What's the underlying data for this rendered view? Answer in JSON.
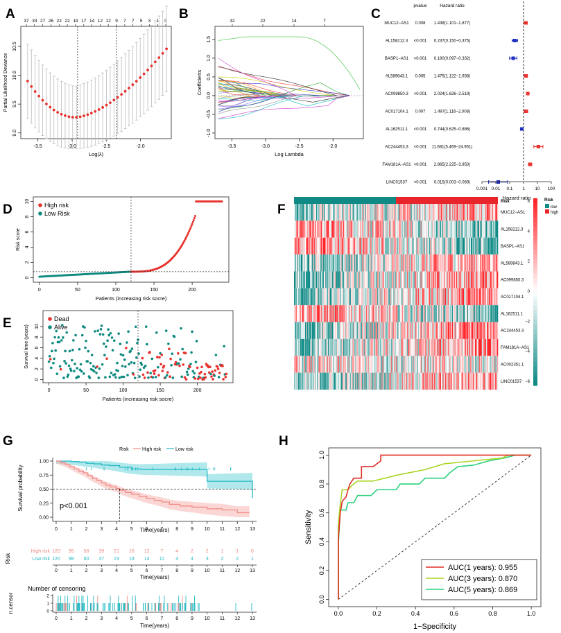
{
  "colors": {
    "high": "#e8322e",
    "low": "#0e8a80",
    "blue": "#1f2fbf",
    "km_high": "#f08a84",
    "km_low": "#26b9c4",
    "km_high_fill": "#f6b7b3",
    "km_low_fill": "#6fd6dc",
    "roc1": "#e22b25",
    "roc3": "#a9d422",
    "roc5": "#2bd17e",
    "heat_low": "#0f8a85",
    "heat_high": "#e8252a"
  },
  "panels": {
    "A": "A",
    "B": "B",
    "C": "C",
    "D": "D",
    "E": "E",
    "F": "F",
    "G": "G",
    "H": "H"
  },
  "chart_data": [
    {
      "panel": "A",
      "type": "scatter",
      "ylabel": "Partial Likelihood Deviance",
      "xlabel": "Log(λ)",
      "top_ticks": [
        "37",
        "33",
        "27",
        "26",
        "22",
        "22",
        "19",
        "17",
        "14",
        "12",
        "12",
        "9",
        "7",
        "7",
        "5",
        "3",
        "1",
        "0"
      ],
      "xlim": [
        -3.75,
        -1.55
      ],
      "ylim": [
        8.9,
        10.85
      ],
      "xticks": [
        -3.5,
        -3.0,
        -2.5,
        -2.0
      ],
      "xtick_labels": [
        "-3.5",
        "-3.0",
        "-2.5",
        "-2.0"
      ],
      "yticks": [
        9.0,
        9.5,
        10.0,
        10.5
      ],
      "ytick_labels": [
        "9.0",
        "9.5",
        "10.0",
        "10.5"
      ],
      "vlines": [
        -2.92,
        -2.35
      ],
      "n_points": 38,
      "x_range": [
        -3.65,
        -1.62
      ],
      "min_x": -2.95,
      "min_y": 9.27,
      "left_y": 9.9,
      "right_y": 10.46,
      "err_spread": 0.72
    },
    {
      "panel": "B",
      "type": "line",
      "ylabel": "Coefficients",
      "xlabel": "Log Lambda",
      "top_ticks": [
        "32",
        "22",
        "14",
        "7"
      ],
      "xlim": [
        -3.75,
        -1.55
      ],
      "ylim": [
        -1.15,
        1.85
      ],
      "xticks": [
        -3.5,
        -3.0,
        -2.5,
        -2.0
      ],
      "xtick_labels": [
        "-3.5",
        "-3.0",
        "-2.5",
        "-2.0"
      ],
      "yticks": [
        -1.0,
        -0.5,
        0.0,
        0.5,
        1.0,
        1.5
      ],
      "ytick_labels": [
        "-1.0",
        "-0.5",
        "0.0",
        "0.5",
        "1.0",
        "1.5"
      ],
      "n_paths": 38
    },
    {
      "panel": "C",
      "type": "forest",
      "col_pvalue": "pvalue",
      "col_hr": "Hazard ratio",
      "xlabel": "Hazard ratio",
      "xtick_labels": [
        "0.001",
        "0.01",
        "0.1",
        "1",
        "10",
        "100"
      ],
      "rows": [
        {
          "gene": "MUC12−AS1",
          "p": "0.008",
          "hr_text": "1.438(1.101−1.877)",
          "hr": 1.438,
          "lo": 1.101,
          "hi": 1.877
        },
        {
          "gene": "AL158212.3",
          "p": "<0.001",
          "hr_text": "0.237(0.150−0.375)",
          "hr": 0.237,
          "lo": 0.15,
          "hi": 0.375
        },
        {
          "gene": "BASP1−AS1",
          "p": "<0.001",
          "hr_text": "0.180(0.097−0.332)",
          "hr": 0.18,
          "lo": 0.097,
          "hi": 0.332
        },
        {
          "gene": "AL589843.1",
          "p": "0.005",
          "hr_text": "1.475(1.122−1.938)",
          "hr": 1.475,
          "lo": 1.122,
          "hi": 1.938
        },
        {
          "gene": "AC099850.3",
          "p": "<0.001",
          "hr_text": "2.024(1.626−2.519)",
          "hr": 2.024,
          "lo": 1.626,
          "hi": 2.519
        },
        {
          "gene": "AC017104.1",
          "p": "0.007",
          "hr_text": "1.497(1.116−2.008)",
          "hr": 1.497,
          "lo": 1.116,
          "hi": 2.008
        },
        {
          "gene": "AL162511.1",
          "p": "<0.001",
          "hr_text": "0.744(0.625−0.886)",
          "hr": 0.744,
          "lo": 0.625,
          "hi": 0.886
        },
        {
          "gene": "AC244453.3",
          "p": "<0.001",
          "hr_text": "11.681(5.469−24.951)",
          "hr": 11.681,
          "lo": 5.469,
          "hi": 24.951
        },
        {
          "gene": "FAM181A−AS1",
          "p": "<0.001",
          "hr_text": "2.865(2.225−3.950)",
          "hr": 2.865,
          "lo": 2.225,
          "hi": 3.95
        },
        {
          "gene": "LINC01537",
          "p": "<0.001",
          "hr_text": "0.015(0.003−0.069)",
          "hr": 0.015,
          "lo": 0.003,
          "hi": 0.069
        }
      ]
    },
    {
      "panel": "D",
      "type": "scatter",
      "ylabel": "Risk score",
      "xlabel": "Patients (increasing risk socre)",
      "legend": [
        "High risk",
        "Low Risk"
      ],
      "xlim": [
        -8,
        248
      ],
      "ylim": [
        -0.6,
        10.6
      ],
      "xticks": [
        0,
        50,
        100,
        150,
        200
      ],
      "xtick_labels": [
        "0",
        "50",
        "100",
        "150",
        "200"
      ],
      "yticks": [
        0,
        2,
        4,
        6,
        8,
        10
      ],
      "ytick_labels": [
        "0",
        "2",
        "4",
        "6",
        "8",
        "10"
      ],
      "cutoff_index": 120,
      "cutoff_score": 0.78,
      "n_patients": 240
    },
    {
      "panel": "E",
      "type": "scatter",
      "ylabel": "Survival time (years)",
      "xlabel": "Patients (increasing risk socre)",
      "legend": [
        "Dead",
        "Alive"
      ],
      "xlim": [
        -8,
        248
      ],
      "ylim": [
        -0.6,
        13
      ],
      "xticks": [
        0,
        50,
        100,
        150,
        200
      ],
      "xtick_labels": [
        "0",
        "50",
        "100",
        "150",
        "200"
      ],
      "yticks": [
        0,
        2,
        4,
        6,
        8,
        10
      ],
      "ytick_labels": [
        "0",
        "2",
        "4",
        "6",
        "8",
        "10"
      ],
      "cutoff_index": 120
    },
    {
      "panel": "F",
      "type": "heatmap",
      "rows": [
        "MUC12−AS1",
        "AL158212.3",
        "BASP1−AS1",
        "AL589843.1",
        "AC099850.3",
        "AC017104.1",
        "AL162511.1",
        "AC244453.3",
        "FAM181A−AS1",
        "AC002351.1",
        "LINC01537"
      ],
      "row_trend": [
        1,
        -1,
        -1,
        1,
        1,
        1,
        -1,
        1,
        1,
        0,
        1
      ],
      "n_cols": 240,
      "annotation_label": "Risk",
      "legend_title": "Risk",
      "legend_levels": [
        "low",
        "high"
      ],
      "scale_labels": [
        "6",
        "4",
        "2",
        "0",
        "−2",
        "−4",
        "−6"
      ]
    },
    {
      "panel": "G",
      "type": "line",
      "legend_title": "Risk",
      "legend": [
        "High risk",
        "Low risk"
      ],
      "ylabel": "Survival probability",
      "xlabel": "Time(years)",
      "pvalue": "p<0.001",
      "xticks": [
        0,
        1,
        2,
        3,
        4,
        5,
        6,
        7,
        8,
        9,
        10,
        11,
        12,
        13
      ],
      "xtick_labels": [
        "0",
        "1",
        "2",
        "3",
        "4",
        "5",
        "6",
        "7",
        "8",
        "9",
        "10",
        "11",
        "12",
        "13"
      ],
      "yticks": [
        0,
        0.25,
        0.5,
        0.75,
        1.0
      ],
      "ytick_labels": [
        "0.00",
        "0.25",
        "0.50",
        "0.75",
        "1.00"
      ],
      "median_high": 4.2,
      "high_steps": [
        [
          0,
          1
        ],
        [
          0.3,
          0.97
        ],
        [
          0.6,
          0.94
        ],
        [
          0.9,
          0.9
        ],
        [
          1.2,
          0.86
        ],
        [
          1.5,
          0.82
        ],
        [
          1.8,
          0.79
        ],
        [
          2.1,
          0.74
        ],
        [
          2.4,
          0.69
        ],
        [
          2.7,
          0.65
        ],
        [
          3.0,
          0.61
        ],
        [
          3.3,
          0.57
        ],
        [
          3.6,
          0.54
        ],
        [
          4.0,
          0.51
        ],
        [
          4.2,
          0.48
        ],
        [
          4.6,
          0.44
        ],
        [
          5.0,
          0.41
        ],
        [
          5.5,
          0.37
        ],
        [
          6.0,
          0.33
        ],
        [
          6.5,
          0.3
        ],
        [
          7.0,
          0.27
        ],
        [
          7.5,
          0.23
        ],
        [
          8.2,
          0.2
        ],
        [
          9.0,
          0.18
        ],
        [
          10.0,
          0.15
        ],
        [
          11.0,
          0.13
        ],
        [
          12.0,
          0.08
        ],
        [
          12.8,
          0.08
        ]
      ],
      "low_steps": [
        [
          0,
          1
        ],
        [
          1.0,
          0.99
        ],
        [
          1.5,
          0.98
        ],
        [
          2.0,
          0.96
        ],
        [
          2.5,
          0.95
        ],
        [
          3.0,
          0.93
        ],
        [
          3.5,
          0.92
        ],
        [
          4.2,
          0.89
        ],
        [
          5.0,
          0.86
        ],
        [
          5.6,
          0.85
        ],
        [
          10.0,
          0.85
        ],
        [
          10.0,
          0.64
        ],
        [
          13.0,
          0.64
        ],
        [
          13.0,
          0.34
        ]
      ],
      "risk_table": {
        "title": "Risk",
        "xlabel": "Time(years)",
        "rows": [
          {
            "name": "High risk",
            "counts": [
              "120",
              "95",
              "58",
              "39",
              "21",
              "16",
              "12",
              "7",
              "4",
              "2",
              "2",
              "1",
              "1",
              "0"
            ]
          },
          {
            "name": "Low risk",
            "counts": [
              "120",
              "98",
              "60",
              "37",
              "23",
              "18",
              "14",
              "11",
              "4",
              "4",
              "3",
              "2",
              "2",
              "1"
            ]
          }
        ]
      },
      "censor": {
        "title": "Number of censoring",
        "ylabel": "n.censor",
        "xlabel": "Time(years)",
        "yticks": [
          "0",
          "1",
          "2"
        ]
      }
    },
    {
      "panel": "H",
      "type": "line",
      "ylabel": "Sensitivity",
      "xlabel": "1−Specificity",
      "xlim": [
        0,
        1
      ],
      "ylim": [
        0,
        1
      ],
      "xticks": [
        0,
        0.2,
        0.4,
        0.6,
        0.8,
        1.0
      ],
      "xtick_labels": [
        "0.0",
        "0.2",
        "0.4",
        "0.6",
        "0.8",
        "1.0"
      ],
      "yticks": [
        0,
        0.2,
        0.4,
        0.6,
        0.8,
        1.0
      ],
      "ytick_labels": [
        "0.0",
        "0.2",
        "0.4",
        "0.6",
        "0.8",
        "1.0"
      ],
      "series": [
        {
          "name": "AUC(1 years): 0.955",
          "points": [
            [
              0,
              0
            ],
            [
              0,
              0.42
            ],
            [
              0.01,
              0.6
            ],
            [
              0.02,
              0.68
            ],
            [
              0.04,
              0.71
            ],
            [
              0.05,
              0.76
            ],
            [
              0.06,
              0.8
            ],
            [
              0.08,
              0.84
            ],
            [
              0.12,
              0.84
            ],
            [
              0.12,
              0.92
            ],
            [
              0.18,
              0.92
            ],
            [
              0.22,
              0.96
            ],
            [
              0.22,
              1
            ],
            [
              1,
              1
            ]
          ]
        },
        {
          "name": "AUC(3 years): 0.870",
          "points": [
            [
              0,
              0
            ],
            [
              0,
              0.52
            ],
            [
              0.01,
              0.66
            ],
            [
              0.02,
              0.76
            ],
            [
              0.05,
              0.76
            ],
            [
              0.07,
              0.79
            ],
            [
              0.1,
              0.82
            ],
            [
              0.18,
              0.82
            ],
            [
              0.3,
              0.86
            ],
            [
              0.45,
              0.9
            ],
            [
              0.55,
              0.94
            ],
            [
              0.7,
              0.96
            ],
            [
              0.85,
              0.98
            ],
            [
              0.88,
              1
            ],
            [
              1,
              1
            ]
          ]
        },
        {
          "name": "AUC(5 years): 0.869",
          "points": [
            [
              0,
              0
            ],
            [
              0,
              0.38
            ],
            [
              0.01,
              0.62
            ],
            [
              0.04,
              0.62
            ],
            [
              0.05,
              0.67
            ],
            [
              0.08,
              0.67
            ],
            [
              0.1,
              0.72
            ],
            [
              0.17,
              0.72
            ],
            [
              0.2,
              0.76
            ],
            [
              0.3,
              0.76
            ],
            [
              0.32,
              0.8
            ],
            [
              0.42,
              0.8
            ],
            [
              0.45,
              0.84
            ],
            [
              0.55,
              0.84
            ],
            [
              0.58,
              0.88
            ],
            [
              0.62,
              0.92
            ],
            [
              0.7,
              0.93
            ],
            [
              0.78,
              0.96
            ],
            [
              0.86,
              0.98
            ],
            [
              0.92,
              1
            ],
            [
              1,
              1
            ]
          ]
        }
      ]
    }
  ]
}
